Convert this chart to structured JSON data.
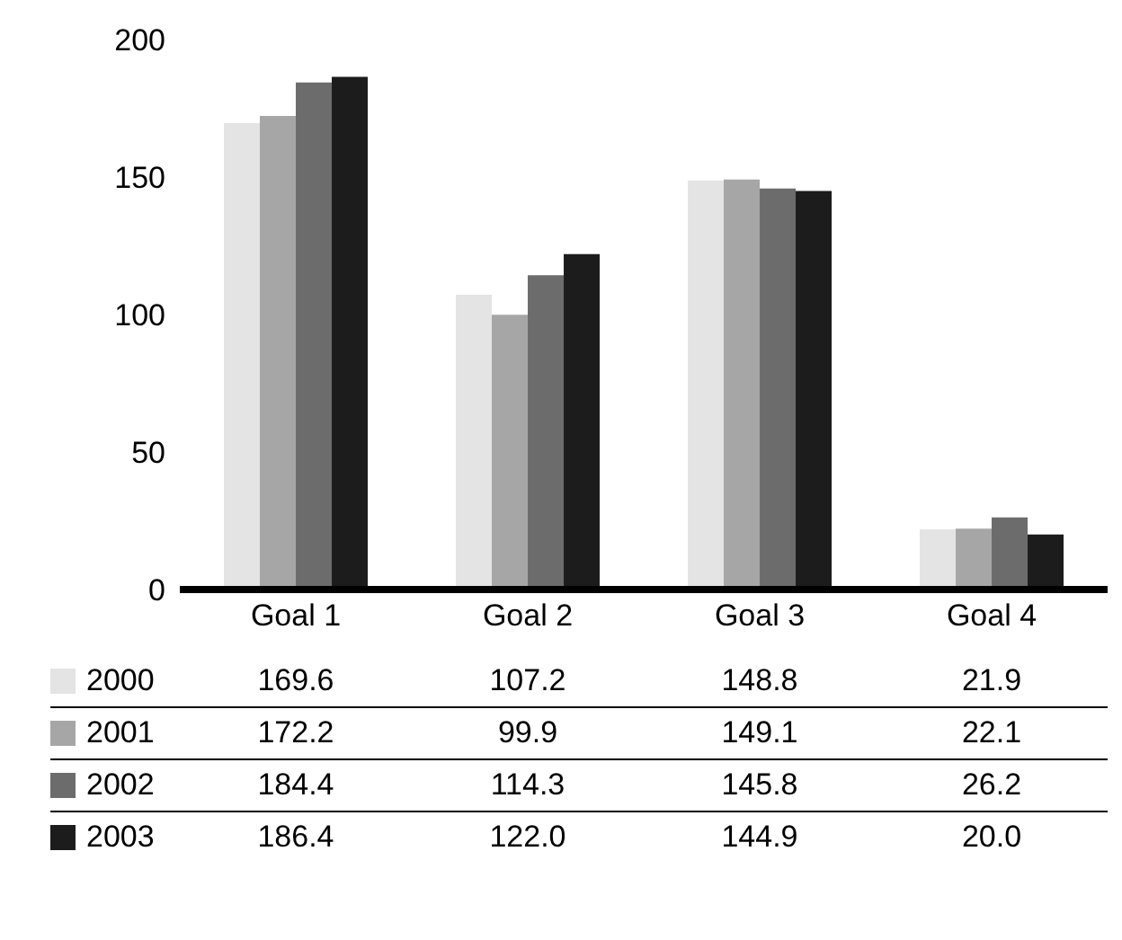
{
  "chart_data": {
    "type": "bar",
    "categories": [
      "Goal 1",
      "Goal 2",
      "Goal 3",
      "Goal 4"
    ],
    "series": [
      {
        "name": "2000",
        "color": "#e4e4e4",
        "values": [
          169.6,
          107.2,
          148.8,
          21.9
        ],
        "value_labels": [
          "169.6",
          "107.2",
          "148.8",
          "21.9"
        ]
      },
      {
        "name": "2001",
        "color": "#a6a6a6",
        "values": [
          172.2,
          99.9,
          149.1,
          22.1
        ],
        "value_labels": [
          "172.2",
          "99.9",
          "149.1",
          "22.1"
        ]
      },
      {
        "name": "2002",
        "color": "#6c6c6c",
        "values": [
          184.4,
          114.3,
          145.8,
          26.2
        ],
        "value_labels": [
          "184.4",
          "114.3",
          "145.8",
          "26.2"
        ]
      },
      {
        "name": "2003",
        "color": "#1c1c1c",
        "values": [
          186.4,
          122.0,
          144.9,
          20.0
        ],
        "value_labels": [
          "186.4",
          "122.0",
          "144.9",
          "20.0"
        ]
      }
    ],
    "ylim": [
      0,
      200
    ],
    "yticks": [
      0,
      50,
      100,
      150,
      200
    ],
    "grid": false,
    "legend": "bottom"
  }
}
